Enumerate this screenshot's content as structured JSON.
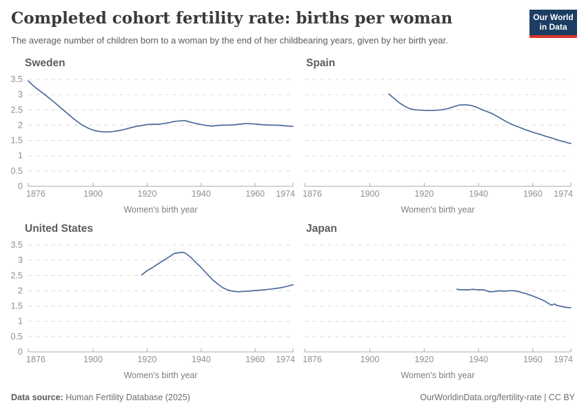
{
  "header": {
    "title": "Completed cohort fertility rate: births per woman",
    "subtitle": "The average number of children born to a woman by the end of her childbearing years, given by her birth year.",
    "logo": {
      "line1": "Our World",
      "line2": "in Data",
      "bg_color": "#1d3d63",
      "bar_color": "#dc352c"
    }
  },
  "footer": {
    "source_label": "Data source:",
    "source_text": " Human Fertility Database (2025)",
    "right_text": "OurWorldinData.org/fertility-rate | CC BY"
  },
  "colors": {
    "line": "#4C6A9C",
    "grid": "#dcdcdc",
    "axis": "#a8a8a8",
    "tick_label": "#8f8f8f",
    "axis_label": "#7d7d7d",
    "chart_title": "#5c5c5c"
  },
  "chart_data": [
    {
      "type": "line",
      "title": "Sweden",
      "xlabel": "Women's birth year",
      "xlim": [
        1876,
        1974
      ],
      "ylim": [
        0,
        3.5
      ],
      "x_ticks": [
        1876,
        1900,
        1920,
        1940,
        1960,
        1974
      ],
      "y_ticks": [
        0,
        0.5,
        1,
        1.5,
        2,
        2.5,
        3,
        3.5
      ],
      "grid": true,
      "points": [
        [
          1876,
          3.45
        ],
        [
          1878,
          3.28
        ],
        [
          1880,
          3.14
        ],
        [
          1882,
          3.01
        ],
        [
          1884,
          2.87
        ],
        [
          1886,
          2.72
        ],
        [
          1888,
          2.57
        ],
        [
          1890,
          2.42
        ],
        [
          1892,
          2.27
        ],
        [
          1894,
          2.13
        ],
        [
          1896,
          2.0
        ],
        [
          1898,
          1.91
        ],
        [
          1900,
          1.84
        ],
        [
          1902,
          1.8
        ],
        [
          1904,
          1.78
        ],
        [
          1906,
          1.78
        ],
        [
          1908,
          1.8
        ],
        [
          1910,
          1.83
        ],
        [
          1912,
          1.87
        ],
        [
          1914,
          1.92
        ],
        [
          1916,
          1.96
        ],
        [
          1918,
          1.99
        ],
        [
          1920,
          2.02
        ],
        [
          1922,
          2.03
        ],
        [
          1924,
          2.03
        ],
        [
          1926,
          2.05
        ],
        [
          1928,
          2.08
        ],
        [
          1930,
          2.12
        ],
        [
          1932,
          2.14
        ],
        [
          1934,
          2.15
        ],
        [
          1936,
          2.1
        ],
        [
          1938,
          2.06
        ],
        [
          1940,
          2.02
        ],
        [
          1942,
          1.99
        ],
        [
          1944,
          1.97
        ],
        [
          1946,
          1.99
        ],
        [
          1948,
          2.0
        ],
        [
          1950,
          2.0
        ],
        [
          1952,
          2.01
        ],
        [
          1954,
          2.03
        ],
        [
          1956,
          2.05
        ],
        [
          1958,
          2.05
        ],
        [
          1960,
          2.04
        ],
        [
          1962,
          2.02
        ],
        [
          1964,
          2.01
        ],
        [
          1966,
          2.0
        ],
        [
          1968,
          2.0
        ],
        [
          1970,
          1.99
        ],
        [
          1972,
          1.97
        ],
        [
          1974,
          1.96
        ]
      ]
    },
    {
      "type": "line",
      "title": "Spain",
      "xlabel": "Women's birth year",
      "xlim": [
        1876,
        1974
      ],
      "ylim": [
        0,
        3.5
      ],
      "x_ticks": [
        1876,
        1900,
        1920,
        1940,
        1960,
        1974
      ],
      "y_ticks": [
        0,
        0.5,
        1,
        1.5,
        2,
        2.5,
        3,
        3.5
      ],
      "grid": true,
      "points": [
        [
          1907,
          3.02
        ],
        [
          1909,
          2.87
        ],
        [
          1911,
          2.72
        ],
        [
          1913,
          2.61
        ],
        [
          1915,
          2.53
        ],
        [
          1917,
          2.5
        ],
        [
          1919,
          2.49
        ],
        [
          1921,
          2.48
        ],
        [
          1923,
          2.48
        ],
        [
          1925,
          2.49
        ],
        [
          1927,
          2.51
        ],
        [
          1929,
          2.55
        ],
        [
          1931,
          2.61
        ],
        [
          1933,
          2.66
        ],
        [
          1935,
          2.67
        ],
        [
          1937,
          2.65
        ],
        [
          1939,
          2.6
        ],
        [
          1941,
          2.52
        ],
        [
          1943,
          2.45
        ],
        [
          1945,
          2.38
        ],
        [
          1947,
          2.28
        ],
        [
          1949,
          2.18
        ],
        [
          1951,
          2.08
        ],
        [
          1953,
          2.0
        ],
        [
          1955,
          1.93
        ],
        [
          1957,
          1.86
        ],
        [
          1959,
          1.8
        ],
        [
          1961,
          1.74
        ],
        [
          1963,
          1.69
        ],
        [
          1965,
          1.63
        ],
        [
          1967,
          1.58
        ],
        [
          1969,
          1.52
        ],
        [
          1971,
          1.47
        ],
        [
          1973,
          1.42
        ],
        [
          1974,
          1.4
        ]
      ]
    },
    {
      "type": "line",
      "title": "United States",
      "xlabel": "Women's birth year",
      "xlim": [
        1876,
        1974
      ],
      "ylim": [
        0,
        3.5
      ],
      "x_ticks": [
        1876,
        1900,
        1920,
        1940,
        1960,
        1974
      ],
      "y_ticks": [
        0,
        0.5,
        1,
        1.5,
        2,
        2.5,
        3,
        3.5
      ],
      "grid": true,
      "points": [
        [
          1918,
          2.52
        ],
        [
          1920,
          2.66
        ],
        [
          1922,
          2.76
        ],
        [
          1924,
          2.88
        ],
        [
          1926,
          2.99
        ],
        [
          1928,
          3.1
        ],
        [
          1930,
          3.22
        ],
        [
          1932,
          3.25
        ],
        [
          1933,
          3.26
        ],
        [
          1934,
          3.24
        ],
        [
          1936,
          3.11
        ],
        [
          1938,
          2.93
        ],
        [
          1940,
          2.76
        ],
        [
          1942,
          2.57
        ],
        [
          1944,
          2.38
        ],
        [
          1946,
          2.23
        ],
        [
          1948,
          2.1
        ],
        [
          1950,
          2.02
        ],
        [
          1952,
          1.98
        ],
        [
          1954,
          1.97
        ],
        [
          1956,
          1.98
        ],
        [
          1958,
          1.99
        ],
        [
          1960,
          2.01
        ],
        [
          1962,
          2.02
        ],
        [
          1964,
          2.04
        ],
        [
          1966,
          2.06
        ],
        [
          1968,
          2.08
        ],
        [
          1970,
          2.11
        ],
        [
          1972,
          2.15
        ],
        [
          1974,
          2.2
        ]
      ]
    },
    {
      "type": "line",
      "title": "Japan",
      "xlabel": "Women's birth year",
      "xlim": [
        1876,
        1974
      ],
      "ylim": [
        0,
        3.5
      ],
      "x_ticks": [
        1876,
        1900,
        1920,
        1940,
        1960,
        1974
      ],
      "y_ticks": [
        0,
        0.5,
        1,
        1.5,
        2,
        2.5,
        3,
        3.5
      ],
      "grid": true,
      "points": [
        [
          1932,
          2.05
        ],
        [
          1933,
          2.04
        ],
        [
          1934,
          2.03
        ],
        [
          1935,
          2.04
        ],
        [
          1936,
          2.03
        ],
        [
          1937,
          2.04
        ],
        [
          1938,
          2.05
        ],
        [
          1939,
          2.04
        ],
        [
          1940,
          2.03
        ],
        [
          1941,
          2.04
        ],
        [
          1942,
          2.03
        ],
        [
          1943,
          2.0
        ],
        [
          1944,
          1.97
        ],
        [
          1945,
          1.97
        ],
        [
          1946,
          1.98
        ],
        [
          1947,
          1.99
        ],
        [
          1948,
          2.0
        ],
        [
          1949,
          1.99
        ],
        [
          1950,
          1.99
        ],
        [
          1951,
          2.0
        ],
        [
          1952,
          2.0
        ],
        [
          1953,
          2.0
        ],
        [
          1954,
          1.99
        ],
        [
          1955,
          1.97
        ],
        [
          1956,
          1.94
        ],
        [
          1957,
          1.92
        ],
        [
          1958,
          1.89
        ],
        [
          1959,
          1.86
        ],
        [
          1960,
          1.83
        ],
        [
          1961,
          1.79
        ],
        [
          1962,
          1.76
        ],
        [
          1963,
          1.72
        ],
        [
          1964,
          1.68
        ],
        [
          1965,
          1.63
        ],
        [
          1966,
          1.57
        ],
        [
          1967,
          1.53
        ],
        [
          1968,
          1.57
        ],
        [
          1969,
          1.52
        ],
        [
          1970,
          1.5
        ],
        [
          1971,
          1.48
        ],
        [
          1972,
          1.46
        ],
        [
          1973,
          1.45
        ],
        [
          1974,
          1.45
        ]
      ]
    }
  ]
}
